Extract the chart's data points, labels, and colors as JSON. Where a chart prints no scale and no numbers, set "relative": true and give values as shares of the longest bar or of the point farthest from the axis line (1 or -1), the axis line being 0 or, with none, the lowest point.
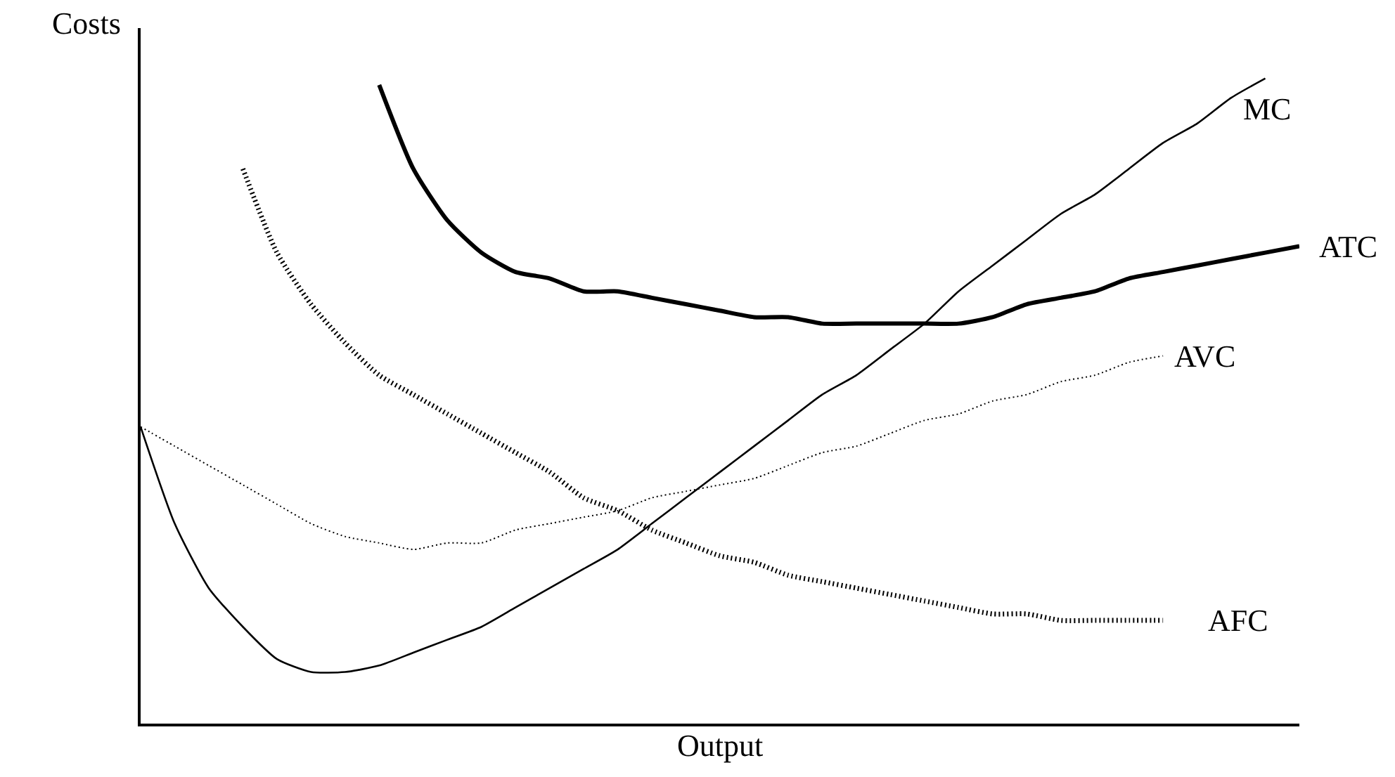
{
  "chart_data": {
    "type": "line",
    "relative": true,
    "xlabel": "Output",
    "ylabel": "Costs",
    "legend": false,
    "marker": "none",
    "categories": [
      null,
      null,
      null,
      null,
      null,
      null,
      null,
      null,
      null,
      null,
      null,
      null,
      null,
      null,
      null,
      null,
      null,
      null,
      null,
      null,
      null,
      null,
      null,
      null,
      null,
      null,
      null,
      null,
      null,
      null,
      null,
      null,
      null,
      null,
      null
    ],
    "series": [
      {
        "name": "MC",
        "color": "#000000",
        "line_style": "solid",
        "values": [
          0.46,
          0.31,
          0.21,
          0.15,
          0.1,
          0.08,
          0.08,
          0.09,
          0.11,
          0.13,
          0.15,
          0.18,
          0.21,
          0.24,
          0.27,
          0.31,
          0.35,
          0.39,
          0.43,
          0.47,
          0.51,
          0.54,
          0.58,
          0.62,
          0.67,
          0.71,
          0.75,
          0.79,
          0.82,
          0.86,
          0.9,
          0.93,
          0.97,
          1,
          null
        ]
      },
      {
        "name": "ATC",
        "color": "#000000",
        "line_style": "solid",
        "values": [
          null,
          null,
          null,
          null,
          null,
          null,
          null,
          0.99,
          0.86,
          0.78,
          0.73,
          0.7,
          0.69,
          0.67,
          0.67,
          0.66,
          0.65,
          0.64,
          0.63,
          0.63,
          0.62,
          0.62,
          0.62,
          0.62,
          0.62,
          0.63,
          0.65,
          0.66,
          0.67,
          0.69,
          0.7,
          0.71,
          0.72,
          0.73,
          0.74
        ]
      },
      {
        "name": "AVC",
        "color": "#000000",
        "line_style": "dotted",
        "values": [
          0.46,
          0.43,
          0.4,
          0.37,
          0.34,
          0.31,
          0.29,
          0.28,
          0.27,
          0.28,
          0.28,
          0.3,
          0.31,
          0.32,
          0.33,
          0.35,
          0.36,
          0.37,
          0.38,
          0.4,
          0.42,
          0.43,
          0.45,
          0.47,
          0.48,
          0.5,
          0.51,
          0.53,
          0.54,
          0.56,
          0.57,
          null,
          null,
          null,
          null
        ]
      },
      {
        "name": "AFC",
        "color": "#000000",
        "line_style": "dotted",
        "values": [
          null,
          null,
          null,
          0.86,
          0.73,
          0.65,
          0.59,
          0.54,
          0.51,
          0.48,
          0.45,
          0.42,
          0.39,
          0.35,
          0.33,
          0.3,
          0.28,
          0.26,
          0.25,
          0.23,
          0.22,
          0.21,
          0.2,
          0.19,
          0.18,
          0.17,
          0.17,
          0.16,
          0.16,
          0.16,
          0.16,
          null,
          null,
          null,
          null
        ]
      }
    ]
  }
}
